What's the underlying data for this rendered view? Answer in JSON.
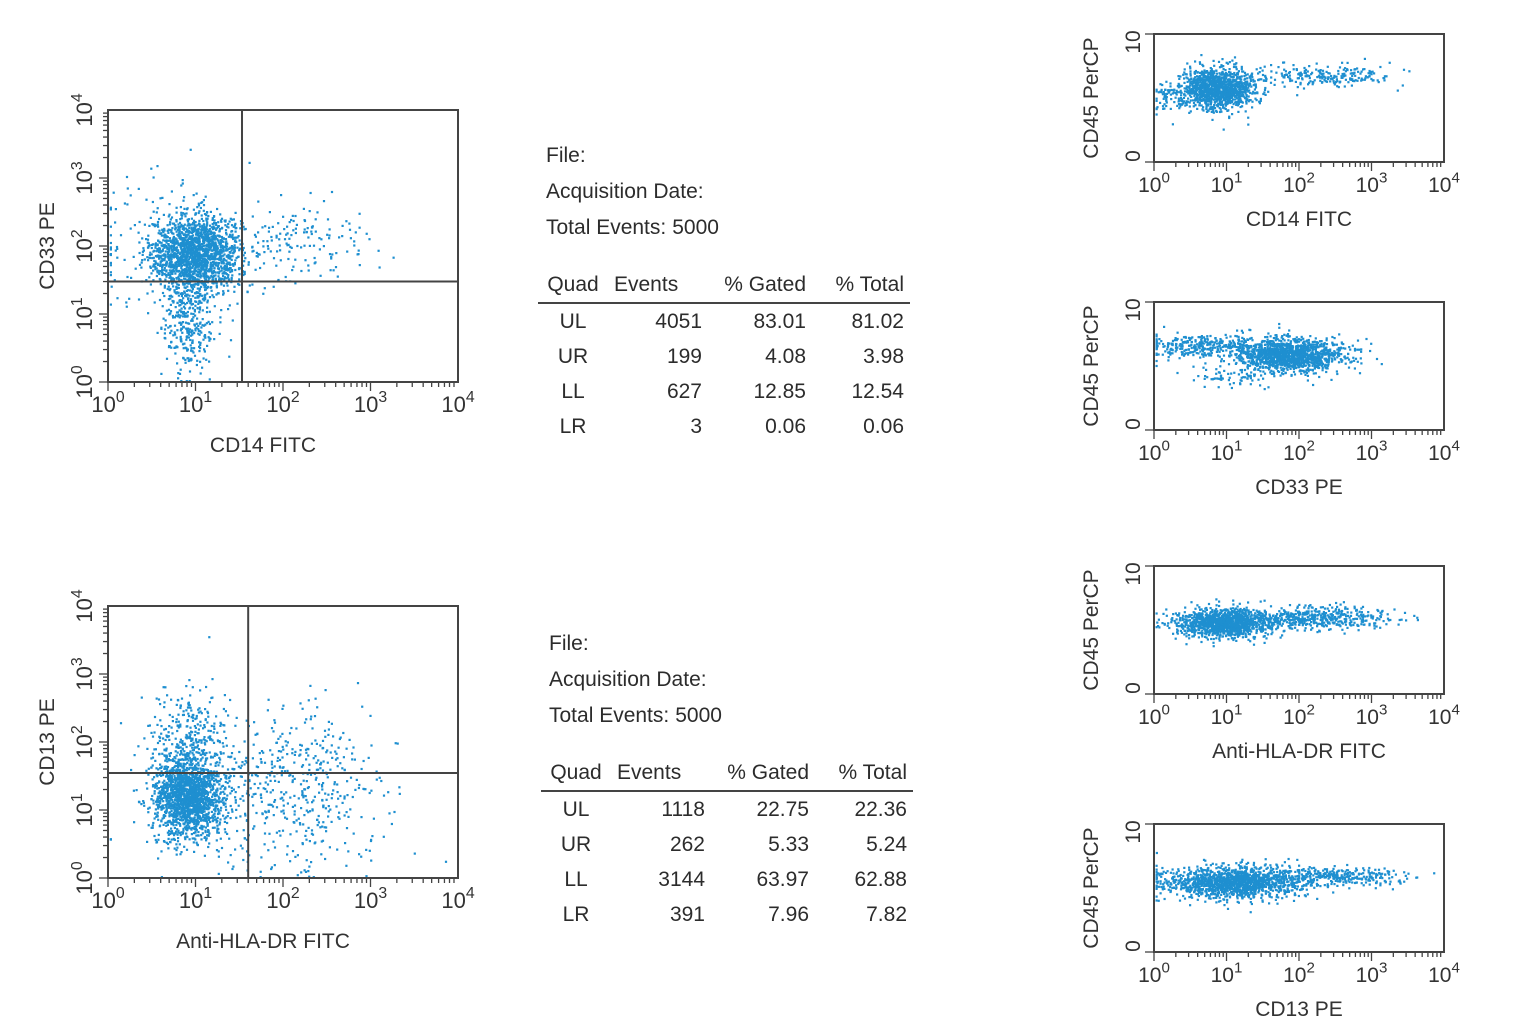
{
  "colors": {
    "dots": "#1e8fd0",
    "frame": "#444444",
    "text": "#333333"
  },
  "tick_labels_log": [
    "10^0",
    "10^1",
    "10^2",
    "10^3",
    "10^4"
  ],
  "tick_labels_percp": [
    "0",
    "10"
  ],
  "panels": [
    {
      "file_label": "File:",
      "acquisition_label": "Acquisition Date:",
      "total_events_label": "Total Events:",
      "total_events_value": "5000",
      "table": {
        "headers": [
          "Quad",
          "Events",
          "% Gated",
          "% Total"
        ],
        "rows": [
          [
            "UL",
            "4051",
            "83.01",
            "81.02"
          ],
          [
            "UR",
            "199",
            "4.08",
            "3.98"
          ],
          [
            "LL",
            "627",
            "12.85",
            "12.54"
          ],
          [
            "LR",
            "3",
            "0.06",
            "0.06"
          ]
        ]
      }
    },
    {
      "file_label": "File:",
      "acquisition_label": "Acquisition Date:",
      "total_events_label": "Total Events:",
      "total_events_value": "5000",
      "table": {
        "headers": [
          "Quad",
          "Events",
          "% Gated",
          "% Total"
        ],
        "rows": [
          [
            "UL",
            "1118",
            "22.75",
            "22.36"
          ],
          [
            "UR",
            "262",
            "5.33",
            "5.24"
          ],
          [
            "LL",
            "3144",
            "63.97",
            "62.88"
          ],
          [
            "LR",
            "391",
            "7.96",
            "7.82"
          ]
        ]
      }
    }
  ],
  "chart_data": [
    {
      "type": "scatter",
      "xlabel": "CD14 FITC",
      "ylabel": "CD33 PE",
      "xscale": "log",
      "yscale": "log",
      "xlim": [
        1,
        10000
      ],
      "ylim": [
        1,
        10000
      ],
      "quadrant_gate": {
        "x": 34,
        "y": 30
      },
      "clusters": [
        {
          "n": 1800,
          "cx": 1.0,
          "cy": 1.9,
          "sx": 0.26,
          "sy": 0.28
        },
        {
          "n": 320,
          "cx": 0.9,
          "cy": 0.9,
          "sx": 0.15,
          "sy": 0.38
        },
        {
          "n": 150,
          "cx": 2.2,
          "cy": 2.1,
          "sx": 0.45,
          "sy": 0.3
        },
        {
          "n": 120,
          "cx": 0.6,
          "cy": 2.0,
          "sx": 0.5,
          "sy": 0.5
        }
      ],
      "quadrant_counts": {
        "UL": 4051,
        "UR": 199,
        "LL": 627,
        "LR": 3
      }
    },
    {
      "type": "scatter",
      "xlabel": "Anti-HLA-DR FITC",
      "ylabel": "CD13 PE",
      "xscale": "log",
      "yscale": "log",
      "xlim": [
        1,
        10000
      ],
      "ylim": [
        1,
        10000
      ],
      "quadrant_gate": {
        "x": 40,
        "y": 35
      },
      "clusters": [
        {
          "n": 1700,
          "cx": 0.9,
          "cy": 1.2,
          "sx": 0.2,
          "sy": 0.3
        },
        {
          "n": 350,
          "cx": 0.9,
          "cy": 2.0,
          "sx": 0.25,
          "sy": 0.4
        },
        {
          "n": 450,
          "cx": 2.1,
          "cy": 1.4,
          "sx": 0.5,
          "sy": 0.55
        },
        {
          "n": 60,
          "cx": 2.0,
          "cy": 0.5,
          "sx": 0.8,
          "sy": 0.3
        }
      ],
      "quadrant_counts": {
        "UL": 1118,
        "UR": 262,
        "LL": 3144,
        "LR": 391
      }
    },
    {
      "type": "scatter",
      "xlabel": "CD14 FITC",
      "ylabel": "CD45 PerCP",
      "xscale": "log",
      "xlim": [
        1,
        10000
      ],
      "ylim": [
        0,
        10
      ],
      "clusters": [
        {
          "n": 1300,
          "cx": 0.85,
          "cy": 5.8,
          "sx": 0.25,
          "sy": 0.8
        },
        {
          "n": 220,
          "cx": 2.4,
          "cy": 6.8,
          "sx": 0.45,
          "sy": 0.45
        },
        {
          "n": 60,
          "cx": 0.15,
          "cy": 5.2,
          "sx": 0.1,
          "sy": 0.6
        }
      ]
    },
    {
      "type": "scatter",
      "xlabel": "CD33 PE",
      "ylabel": "CD45 PerCP",
      "xscale": "log",
      "xlim": [
        1,
        10000
      ],
      "ylim": [
        0,
        10
      ],
      "clusters": [
        {
          "n": 1400,
          "cx": 1.85,
          "cy": 5.9,
          "sx": 0.38,
          "sy": 0.65
        },
        {
          "n": 350,
          "cx": 0.7,
          "cy": 6.6,
          "sx": 0.45,
          "sy": 0.45
        },
        {
          "n": 60,
          "cx": 1.0,
          "cy": 4.2,
          "sx": 0.3,
          "sy": 0.4
        }
      ]
    },
    {
      "type": "scatter",
      "xlabel": "Anti-HLA-DR FITC",
      "ylabel": "CD45 PerCP",
      "xscale": "log",
      "xlim": [
        1,
        10000
      ],
      "ylim": [
        0,
        10
      ],
      "clusters": [
        {
          "n": 1300,
          "cx": 0.95,
          "cy": 5.6,
          "sx": 0.32,
          "sy": 0.55
        },
        {
          "n": 500,
          "cx": 2.2,
          "cy": 6.0,
          "sx": 0.5,
          "sy": 0.45
        }
      ]
    },
    {
      "type": "scatter",
      "xlabel": "CD13 PE",
      "ylabel": "CD45 PerCP",
      "xscale": "log",
      "xlim": [
        1,
        10000
      ],
      "ylim": [
        0,
        10
      ],
      "clusters": [
        {
          "n": 1500,
          "cx": 1.1,
          "cy": 5.5,
          "sx": 0.5,
          "sy": 0.6
        },
        {
          "n": 300,
          "cx": 2.5,
          "cy": 6.0,
          "sx": 0.45,
          "sy": 0.35
        }
      ]
    }
  ]
}
